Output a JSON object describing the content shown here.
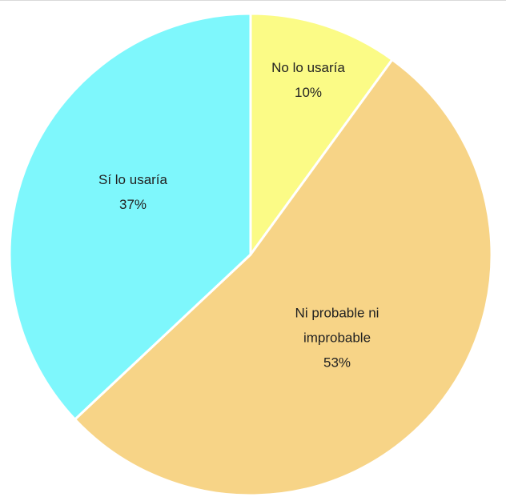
{
  "chart_data": {
    "type": "pie",
    "title": "",
    "slices": [
      {
        "label_lines": [
          "No lo usaría"
        ],
        "value": 10,
        "value_label": "10%",
        "color": "#fbfb86"
      },
      {
        "label_lines": [
          "Ni probable ni",
          "improbable"
        ],
        "value": 53,
        "value_label": "53%",
        "color": "#f7d487"
      },
      {
        "label_lines": [
          "Sí lo usaría"
        ],
        "value": 37,
        "value_label": "37%",
        "color": "#7ef7fc"
      }
    ],
    "start_angle_deg": 0,
    "direction": "clockwise",
    "legend": "none",
    "slice_border_color": "#ffffff"
  }
}
